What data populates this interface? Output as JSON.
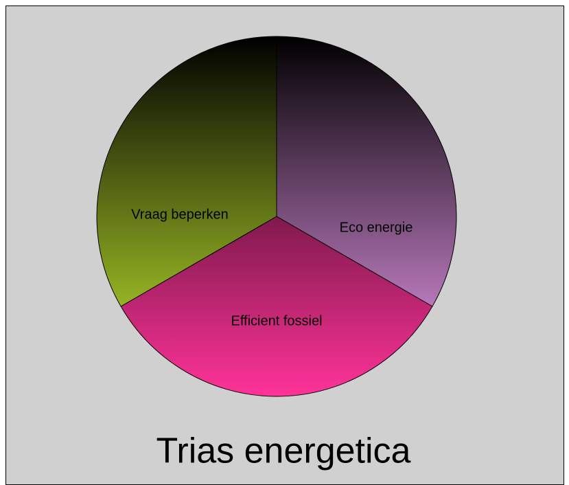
{
  "chart_data": {
    "type": "pie",
    "title": "Trias energetica",
    "categories": [
      "Eco energie",
      "Efficient fossiel",
      "Vraag beperken"
    ],
    "values": [
      33.3,
      33.3,
      33.3
    ],
    "colors": [
      "#f4a0f8",
      "#ff3399",
      "#c8f030"
    ]
  }
}
